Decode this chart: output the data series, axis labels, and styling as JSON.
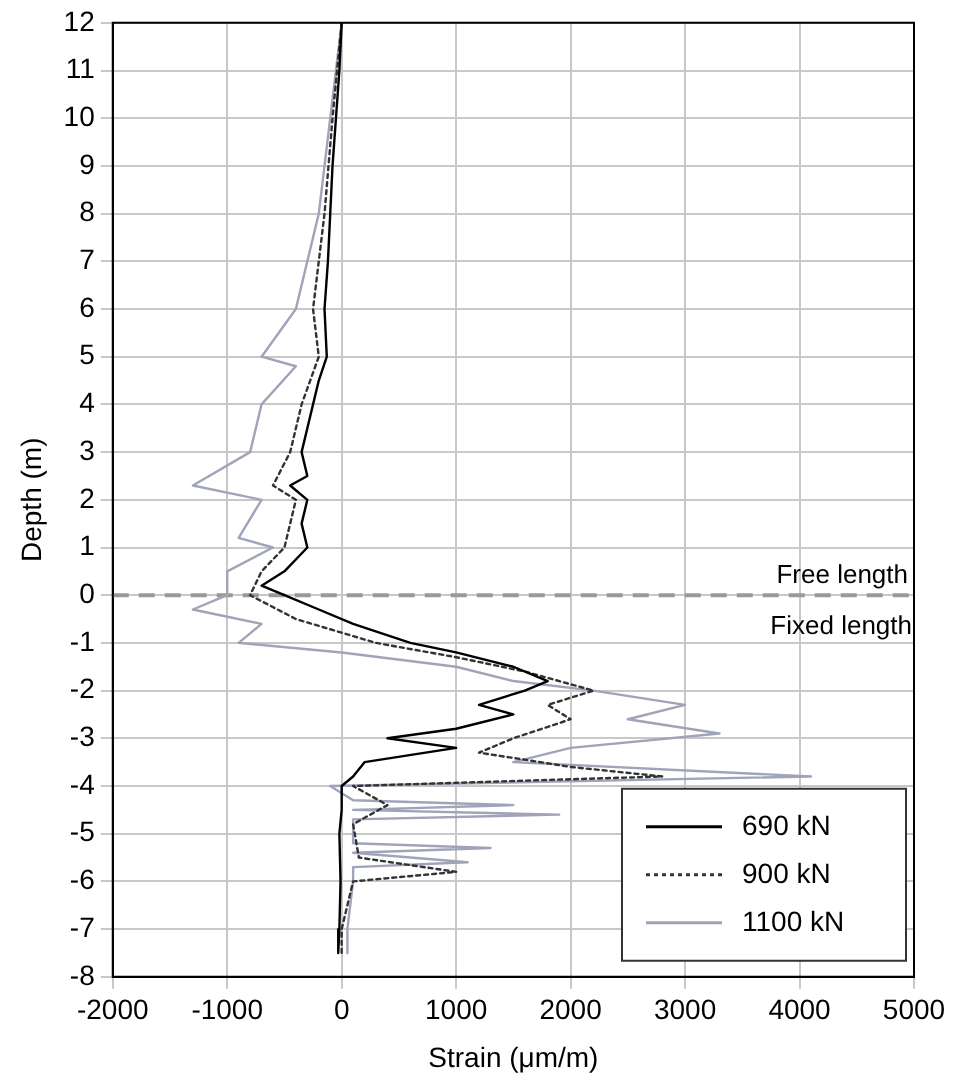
{
  "chart_data": {
    "type": "line",
    "xlabel": "Strain (μm/m)",
    "ylabel": "Depth (m)",
    "xlim": [
      -2000,
      5000
    ],
    "xticks": [
      -2000,
      -1000,
      0,
      1000,
      2000,
      3000,
      4000,
      5000
    ],
    "ylim": [
      -8,
      12
    ],
    "yticks": [
      -8,
      -7,
      -6,
      -5,
      -4,
      -3,
      -2,
      -1,
      0,
      1,
      2,
      3,
      4,
      5,
      6,
      7,
      8,
      9,
      10,
      11,
      12
    ],
    "grid": true,
    "legend": "bottom right",
    "marker": "none",
    "ref_lines": [
      {
        "axis": "y",
        "value": 0,
        "color": "#999999",
        "line_style": "dashed",
        "label": "Free length"
      }
    ],
    "annotations": [
      "Fixed length"
    ],
    "series": [
      {
        "name": "690 kN",
        "color": "#000000",
        "line_style": "solid",
        "x": [
          0,
          -20,
          -50,
          -80,
          -100,
          -120,
          -150,
          -130,
          -200,
          -250,
          -300,
          -350,
          -300,
          -450,
          -300,
          -350,
          -300,
          -500,
          -700,
          -500,
          -200,
          100,
          600,
          1000,
          1500,
          1800,
          1600,
          1200,
          1500,
          1000,
          400,
          1000,
          200,
          100,
          0,
          0,
          -20,
          -10,
          -20,
          -30
        ],
        "values": [
          12,
          11,
          10,
          9,
          8,
          7,
          6,
          5,
          4.5,
          4,
          3.5,
          3,
          2.5,
          2.3,
          2,
          1.5,
          1,
          0.5,
          0.2,
          0,
          -0.3,
          -0.6,
          -1,
          -1.2,
          -1.5,
          -1.8,
          -2,
          -2.3,
          -2.5,
          -2.8,
          -3,
          -3.2,
          -3.5,
          -3.8,
          -4,
          -4.5,
          -5,
          -6,
          -7,
          -7.5
        ]
      },
      {
        "name": "900 kN",
        "color": "#333333",
        "line_style": "dotted",
        "x": [
          0,
          -80,
          -150,
          -250,
          -200,
          -350,
          -450,
          -600,
          -400,
          -500,
          -700,
          -800,
          -400,
          300,
          1000,
          1600,
          2200,
          1800,
          2000,
          1500,
          1200,
          2000,
          2800,
          100,
          400,
          100,
          150,
          1000,
          100,
          0,
          0
        ],
        "values": [
          12,
          10,
          8,
          6,
          5,
          4,
          3,
          2.3,
          2,
          1,
          0.5,
          0,
          -0.5,
          -1,
          -1.3,
          -1.6,
          -2,
          -2.3,
          -2.6,
          -3,
          -3.3,
          -3.6,
          -3.8,
          -4,
          -4.4,
          -4.8,
          -5.5,
          -5.8,
          -6,
          -7,
          -7.5
        ]
      },
      {
        "name": "1100 kN",
        "color": "#a0a4b8",
        "line_style": "solid",
        "x": [
          0,
          -50,
          -100,
          -150,
          -200,
          -300,
          -400,
          -700,
          -400,
          -700,
          -800,
          -1300,
          -700,
          -900,
          -600,
          -1000,
          -1000,
          -1300,
          -700,
          -900,
          0,
          1000,
          1500,
          2200,
          3000,
          2500,
          3300,
          2000,
          1500,
          4100,
          -100,
          100,
          1500,
          100,
          1900,
          100,
          100,
          1300,
          100,
          1100,
          100,
          100,
          50,
          50
        ],
        "values": [
          12,
          11,
          10,
          9,
          8,
          7,
          6,
          5,
          4.8,
          4,
          3,
          2.3,
          2,
          1.2,
          1,
          0.5,
          0,
          -0.3,
          -0.6,
          -1,
          -1.2,
          -1.5,
          -1.8,
          -2,
          -2.3,
          -2.6,
          -2.9,
          -3.2,
          -3.5,
          -3.8,
          -4,
          -4.3,
          -4.4,
          -4.5,
          -4.6,
          -4.7,
          -5.2,
          -5.3,
          -5.4,
          -5.6,
          -5.7,
          -6,
          -7,
          -7.5
        ]
      }
    ]
  }
}
